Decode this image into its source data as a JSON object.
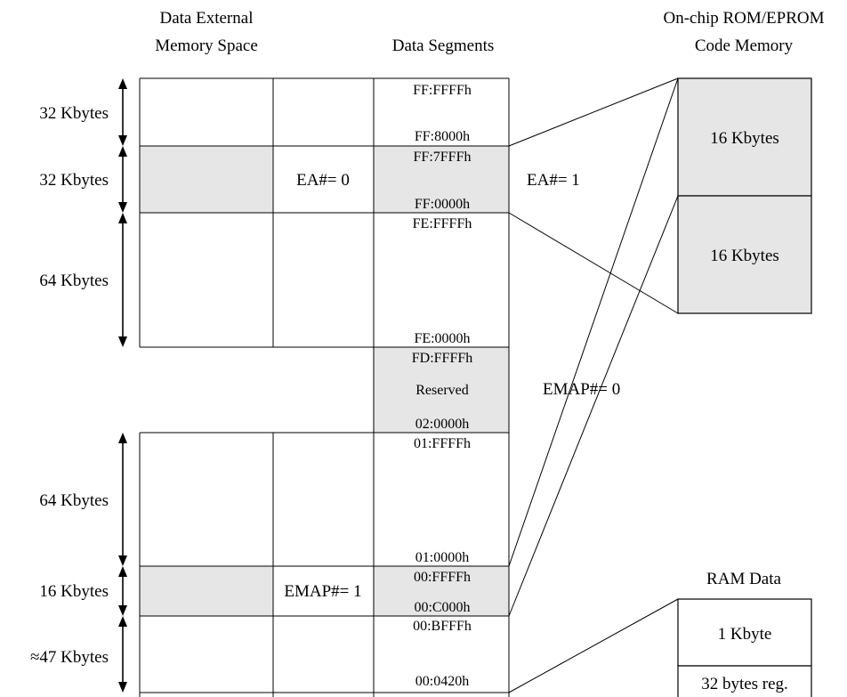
{
  "headers": {
    "ext_line1": "Data External",
    "ext_line2": "Memory Space",
    "segments": "Data Segments",
    "rom_line1": "On-chip ROM/EPROM",
    "rom_line2": "Code Memory",
    "ram": "RAM Data"
  },
  "sizes": {
    "s1": "32 Kbytes",
    "s2": "32 Kbytes",
    "s3": "64 Kbytes",
    "s4": "64 Kbytes",
    "s5": "16 Kbytes",
    "s6": "≈47 Kbytes"
  },
  "addresses": {
    "a1": "FF:FFFFh",
    "a2": "FF:8000h",
    "a3": "FF:7FFFh",
    "a4": "FF:0000h",
    "a5": "FE:FFFFh",
    "a6": "FE:0000h",
    "a7": "FD:FFFFh",
    "a8": "02:0000h",
    "a9": "01:FFFFh",
    "a10": "01:0000h",
    "a11": "00:FFFFh",
    "a12": "00:C000h",
    "a13": "00:BFFFh",
    "a14": "00:0420h"
  },
  "labels": {
    "reserved": "Reserved",
    "ea0": "EA#= 0",
    "ea1": "EA#= 1",
    "emap0": "EMAP#= 0",
    "emap1": "EMAP#= 1"
  },
  "rom": {
    "upper": "16 Kbytes",
    "lower": "16 Kbytes"
  },
  "ram_blocks": {
    "top": "1 Kbyte",
    "bottom": "32 bytes reg."
  },
  "colors": {
    "shade": "#e6e6e6",
    "line": "#000000"
  }
}
